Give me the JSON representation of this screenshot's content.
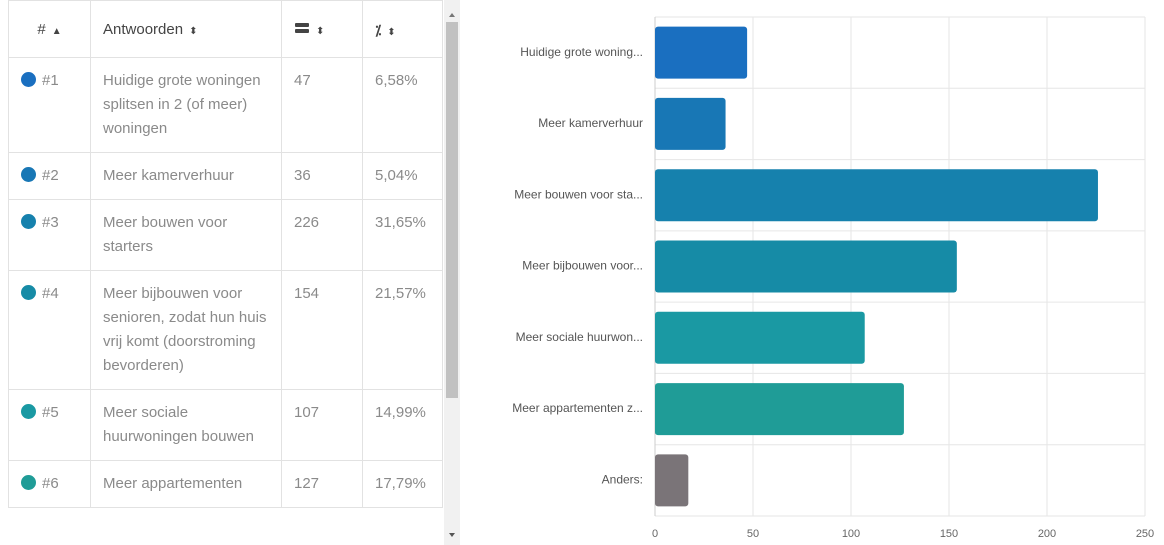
{
  "table": {
    "headers": [
      "#",
      "Antwoorden"
    ],
    "rows": [
      [
        "#1",
        "Huidige grote woningen splitsen in 2 (of meer) woningen",
        "47",
        "6,58%"
      ],
      [
        "#2",
        "Meer kamerverhuur",
        "36",
        "5,04%"
      ],
      [
        "#3",
        "Meer bouwen voor starters",
        "226",
        "31,65%"
      ],
      [
        "#4",
        "Meer bijbouwen voor senioren, zodat hun huis vrij komt (doorstroming bevorderen)",
        "154",
        "21,57%"
      ],
      [
        "#5",
        "Meer sociale huurwoningen bouwen",
        "107",
        "14,99%"
      ],
      [
        "#6",
        "Meer appartementen",
        "127",
        "17,79%"
      ]
    ],
    "dot_colors": [
      "#1a6fc0",
      "#1877b5",
      "#1681ad",
      "#168ba6",
      "#1a99a3",
      "#1f9c97"
    ]
  },
  "chart_data": {
    "type": "bar",
    "orientation": "horizontal",
    "categories": [
      "Huidige grote woning...",
      "Meer kamerverhuur",
      "Meer bouwen voor sta...",
      "Meer bijbouwen voor...",
      "Meer sociale huurwon...",
      "Meer appartementen z...",
      "Anders:"
    ],
    "values": [
      47,
      36,
      226,
      154,
      107,
      127,
      17
    ],
    "colors": [
      "#1a6fc0",
      "#1877b5",
      "#1681ad",
      "#168ba6",
      "#1a99a3",
      "#1f9c97",
      "#7a7478"
    ],
    "xlim": [
      0,
      250
    ],
    "xticks": [
      0,
      50,
      100,
      150,
      200,
      250
    ],
    "grid": true
  }
}
